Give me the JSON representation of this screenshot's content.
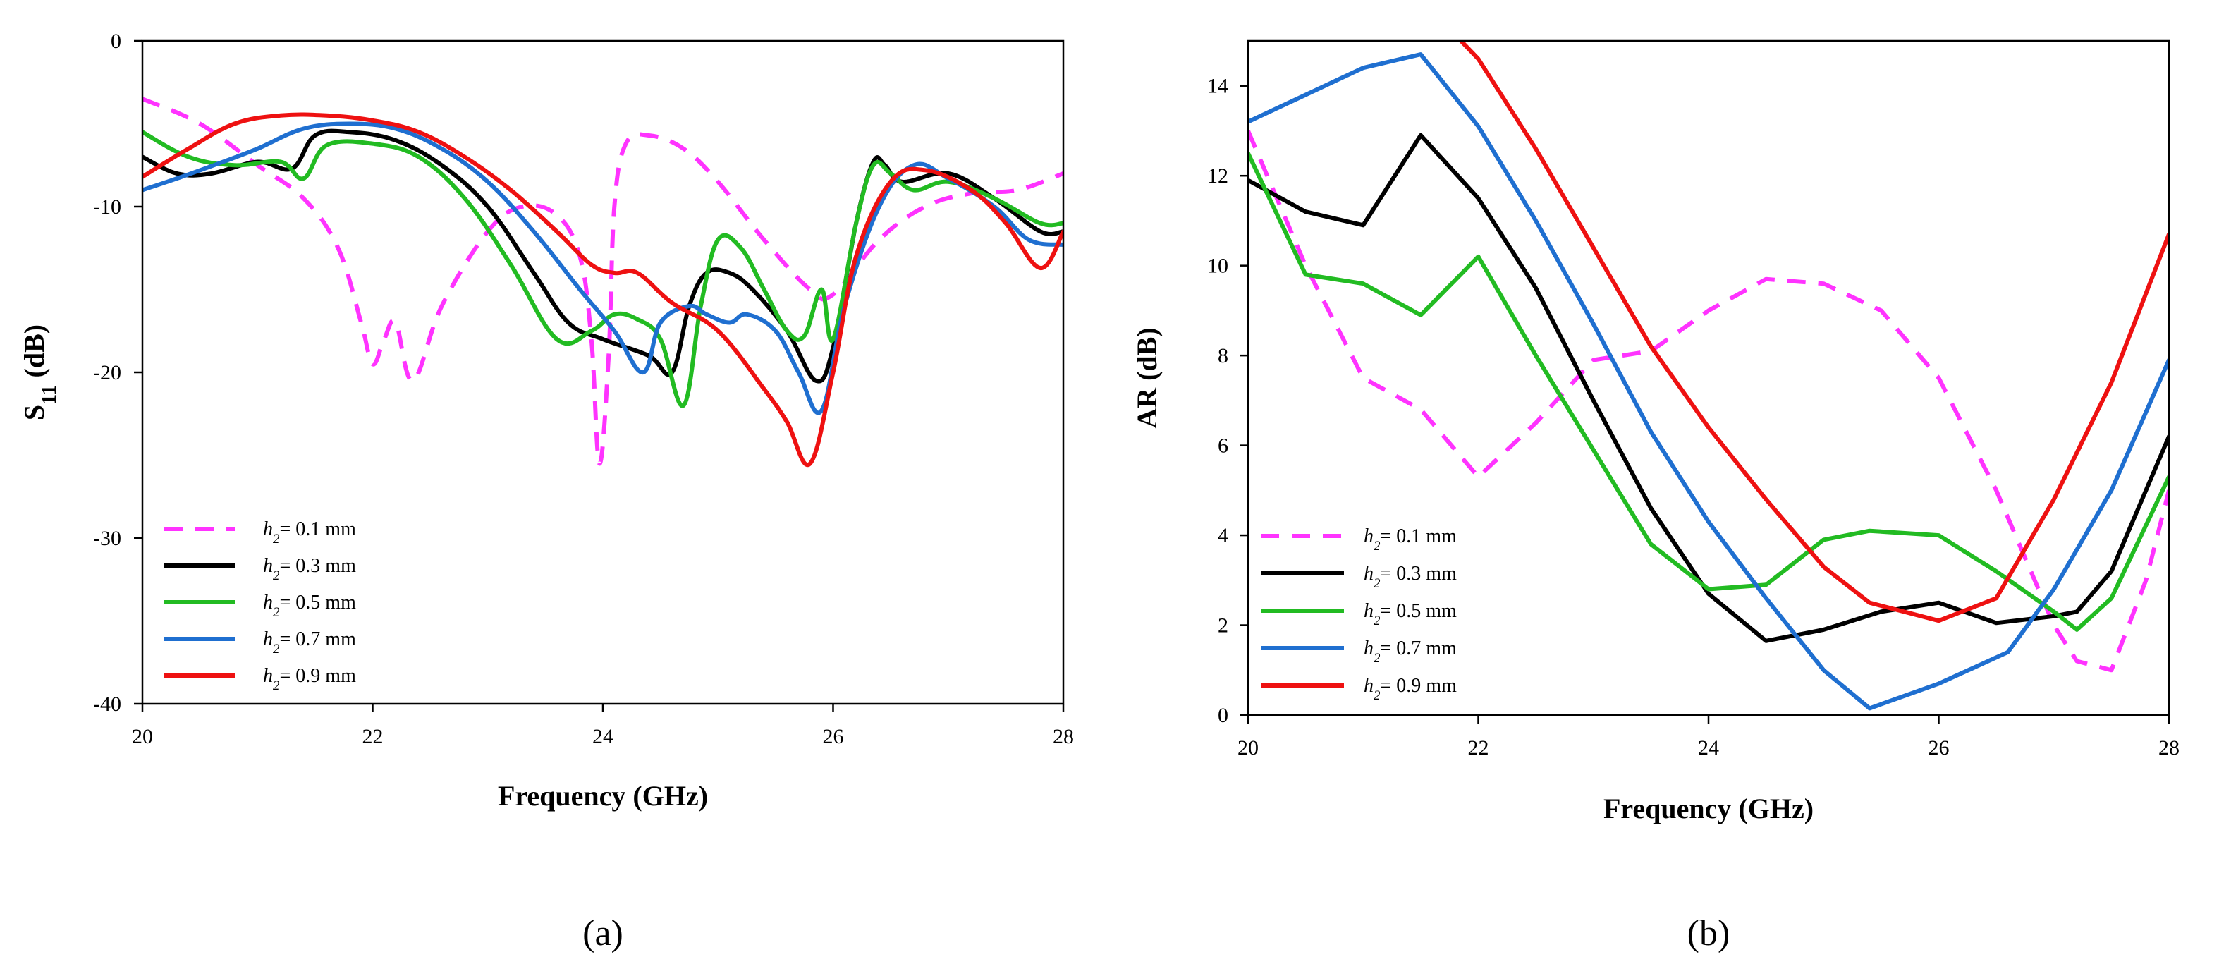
{
  "chart_data": [
    {
      "panel_label": "(a)",
      "type": "line",
      "title": "",
      "xlabel": "Frequency (GHz)",
      "ylabel": "S11 (dB)",
      "ylabel_parts": {
        "main": "S",
        "sub": "11",
        "rest": " (dB)"
      },
      "xlim": [
        20,
        28
      ],
      "ylim": [
        -40,
        0
      ],
      "xticks": [
        20,
        22,
        24,
        26,
        28
      ],
      "yticks": [
        0,
        -10,
        -20,
        -30,
        -40
      ],
      "grid": false,
      "legend_position": "bottom-left",
      "series": [
        {
          "name": "h2= 0.1 mm",
          "label_var": "h",
          "label_sub": "2",
          "label_value": "= 0.1 mm",
          "color": "#ff33ff",
          "dashed": true,
          "x": [
            20.0,
            20.5,
            21.0,
            21.4,
            21.7,
            21.9,
            22.0,
            22.1,
            22.2,
            22.35,
            22.6,
            23.0,
            23.3,
            23.6,
            23.8,
            23.9,
            23.97,
            24.05,
            24.1,
            24.2,
            24.4,
            24.7,
            25.0,
            25.4,
            25.8,
            26.0,
            26.4,
            26.8,
            27.2,
            27.6,
            28.0
          ],
          "y": [
            -3.5,
            -5.0,
            -7.5,
            -9.5,
            -12.5,
            -17.0,
            -19.5,
            -18.0,
            -17.0,
            -20.5,
            -16.0,
            -11.5,
            -10.0,
            -10.5,
            -13.0,
            -18.0,
            -25.5,
            -19.0,
            -10.0,
            -6.2,
            -5.7,
            -6.5,
            -8.5,
            -12.0,
            -15.0,
            -15.3,
            -12.0,
            -10.0,
            -9.2,
            -9.0,
            -8.0
          ]
        },
        {
          "name": "h2= 0.3 mm",
          "label_var": "h",
          "label_sub": "2",
          "label_value": "= 0.3 mm",
          "color": "#000000",
          "dashed": false,
          "x": [
            20.0,
            20.3,
            20.6,
            21.0,
            21.3,
            21.5,
            21.8,
            22.2,
            22.6,
            23.0,
            23.4,
            23.7,
            24.0,
            24.4,
            24.6,
            24.75,
            24.9,
            25.1,
            25.3,
            25.6,
            25.85,
            26.0,
            26.2,
            26.35,
            26.45,
            26.6,
            27.0,
            27.4,
            27.8,
            28.0
          ],
          "y": [
            -7.0,
            -8.0,
            -8.0,
            -7.3,
            -7.7,
            -5.7,
            -5.5,
            -6.0,
            -7.5,
            -10.0,
            -14.0,
            -17.0,
            -18.0,
            -19.0,
            -20.0,
            -16.0,
            -14.0,
            -14.0,
            -15.0,
            -17.5,
            -20.5,
            -18.5,
            -11.0,
            -7.3,
            -7.5,
            -8.5,
            -8.0,
            -9.5,
            -11.5,
            -11.5
          ]
        },
        {
          "name": "h2= 0.5 mm",
          "label_var": "h",
          "label_sub": "2",
          "label_value": "= 0.5 mm",
          "color": "#22bb22",
          "dashed": false,
          "x": [
            20.0,
            20.4,
            20.8,
            21.2,
            21.4,
            21.6,
            22.0,
            22.4,
            22.8,
            23.2,
            23.6,
            23.9,
            24.1,
            24.3,
            24.5,
            24.7,
            24.85,
            25.0,
            25.2,
            25.4,
            25.6,
            25.75,
            25.9,
            26.0,
            26.2,
            26.35,
            26.5,
            26.7,
            27.0,
            27.4,
            27.8,
            28.0
          ],
          "y": [
            -5.5,
            -7.0,
            -7.5,
            -7.3,
            -8.3,
            -6.3,
            -6.2,
            -7.0,
            -9.5,
            -13.5,
            -18.0,
            -17.5,
            -16.5,
            -16.8,
            -18.0,
            -22.0,
            -16.0,
            -12.0,
            -12.5,
            -15.0,
            -17.5,
            -17.8,
            -15.0,
            -18.0,
            -11.0,
            -7.5,
            -8.0,
            -9.0,
            -8.5,
            -9.5,
            -11.0,
            -11.0
          ]
        },
        {
          "name": "h2= 0.7 mm",
          "label_var": "h",
          "label_sub": "2",
          "label_value": "= 0.7 mm",
          "color": "#1f6fd0",
          "dashed": false,
          "x": [
            20.0,
            20.3,
            20.7,
            21.0,
            21.4,
            21.8,
            22.2,
            22.6,
            23.0,
            23.4,
            23.8,
            24.1,
            24.35,
            24.5,
            24.75,
            24.9,
            25.1,
            25.25,
            25.5,
            25.7,
            25.9,
            26.1,
            26.4,
            26.7,
            27.0,
            27.4,
            27.7,
            28.0
          ],
          "y": [
            -9.0,
            -8.3,
            -7.3,
            -6.5,
            -5.3,
            -5.0,
            -5.3,
            -6.5,
            -8.5,
            -11.5,
            -15.0,
            -17.5,
            -20.0,
            -17.0,
            -16.0,
            -16.5,
            -17.0,
            -16.5,
            -17.5,
            -20.0,
            -22.3,
            -16.0,
            -10.0,
            -7.5,
            -8.3,
            -10.0,
            -12.0,
            -12.3
          ]
        },
        {
          "name": "h2= 0.9 mm",
          "label_var": "h",
          "label_sub": "2",
          "label_value": "= 0.9 mm",
          "color": "#ee1111",
          "dashed": false,
          "x": [
            20.0,
            20.4,
            20.8,
            21.2,
            21.6,
            22.0,
            22.4,
            22.8,
            23.2,
            23.6,
            23.9,
            24.1,
            24.3,
            24.6,
            25.0,
            25.4,
            25.6,
            25.8,
            26.0,
            26.2,
            26.5,
            26.8,
            27.2,
            27.5,
            27.8,
            28.0
          ],
          "y": [
            -8.2,
            -6.5,
            -5.0,
            -4.5,
            -4.5,
            -4.8,
            -5.5,
            -7.0,
            -9.0,
            -11.5,
            -13.5,
            -14.0,
            -14.0,
            -15.8,
            -17.5,
            -21.0,
            -23.0,
            -25.5,
            -20.0,
            -13.0,
            -8.5,
            -7.8,
            -9.0,
            -11.0,
            -13.7,
            -11.5
          ]
        }
      ],
      "legend": [
        {
          "series": 0
        },
        {
          "series": 1
        },
        {
          "series": 2
        },
        {
          "series": 3
        },
        {
          "series": 4
        }
      ]
    },
    {
      "panel_label": "(b)",
      "type": "line",
      "title": "",
      "xlabel": "Frequency (GHz)",
      "ylabel": "AR (dB)",
      "xlim": [
        20,
        28
      ],
      "ylim": [
        0,
        15
      ],
      "xticks": [
        20,
        22,
        24,
        26,
        28
      ],
      "yticks": [
        0,
        2,
        4,
        6,
        8,
        10,
        12,
        14
      ],
      "grid": false,
      "legend_position": "bottom-left",
      "series": [
        {
          "name": "h2= 0.1 mm",
          "label_var": "h",
          "label_sub": "2",
          "label_value": "= 0.1 mm",
          "color": "#ff33ff",
          "dashed": true,
          "x": [
            20.0,
            20.5,
            21.0,
            21.5,
            22.0,
            22.5,
            23.0,
            23.5,
            24.0,
            24.5,
            25.0,
            25.5,
            26.0,
            26.5,
            27.0,
            27.2,
            27.5,
            27.8,
            28.0
          ],
          "y": [
            13.0,
            10.0,
            7.5,
            6.8,
            5.3,
            6.5,
            7.9,
            8.1,
            9.0,
            9.7,
            9.6,
            9.0,
            7.5,
            5.0,
            2.0,
            1.2,
            1.0,
            3.0,
            5.0
          ]
        },
        {
          "name": "h2= 0.3 mm",
          "label_var": "h",
          "label_sub": "2",
          "label_value": "= 0.3 mm",
          "color": "#000000",
          "dashed": false,
          "x": [
            20.0,
            20.5,
            21.0,
            21.5,
            22.0,
            22.5,
            23.0,
            23.5,
            24.0,
            24.5,
            25.0,
            25.5,
            26.0,
            26.5,
            27.0,
            27.2,
            27.5,
            28.0
          ],
          "y": [
            11.9,
            11.2,
            10.9,
            12.9,
            11.5,
            9.5,
            7.0,
            4.6,
            2.7,
            1.65,
            1.9,
            2.3,
            2.5,
            2.05,
            2.2,
            2.3,
            3.2,
            6.2
          ]
        },
        {
          "name": "h2= 0.5 mm",
          "label_var": "h",
          "label_sub": "2",
          "label_value": "= 0.5 mm",
          "color": "#22bb22",
          "dashed": false,
          "x": [
            20.0,
            20.5,
            21.0,
            21.5,
            22.0,
            22.5,
            23.0,
            23.5,
            24.0,
            24.5,
            25.0,
            25.4,
            26.0,
            26.5,
            27.0,
            27.2,
            27.5,
            28.0
          ],
          "y": [
            12.5,
            9.8,
            9.6,
            8.9,
            10.2,
            8.0,
            5.9,
            3.8,
            2.8,
            2.9,
            3.9,
            4.1,
            4.0,
            3.2,
            2.3,
            1.9,
            2.6,
            5.3
          ]
        },
        {
          "name": "h2= 0.7 mm",
          "label_var": "h",
          "label_sub": "2",
          "label_value": "= 0.7 mm",
          "color": "#1f6fd0",
          "dashed": false,
          "x": [
            20.0,
            20.5,
            21.0,
            21.5,
            22.0,
            22.5,
            23.0,
            23.5,
            24.0,
            24.5,
            25.0,
            25.4,
            26.0,
            26.6,
            27.0,
            27.5,
            28.0
          ],
          "y": [
            13.2,
            13.8,
            14.4,
            14.7,
            13.1,
            11.0,
            8.7,
            6.3,
            4.3,
            2.6,
            1.0,
            0.15,
            0.7,
            1.4,
            2.8,
            5.0,
            7.9
          ]
        },
        {
          "name": "h2= 0.9 mm",
          "label_var": "h",
          "label_sub": "2",
          "label_value": "= 0.9 mm",
          "color": "#ee1111",
          "dashed": false,
          "x": [
            21.85,
            22.0,
            22.5,
            23.0,
            23.5,
            24.0,
            24.5,
            25.0,
            25.4,
            26.0,
            26.5,
            27.0,
            27.5,
            28.0
          ],
          "y": [
            15.0,
            14.6,
            12.6,
            10.4,
            8.2,
            6.4,
            4.8,
            3.3,
            2.5,
            2.1,
            2.6,
            4.8,
            7.4,
            10.7
          ]
        }
      ],
      "legend": [
        {
          "series": 0
        },
        {
          "series": 1
        },
        {
          "series": 2
        },
        {
          "series": 3
        },
        {
          "series": 4
        }
      ]
    }
  ]
}
